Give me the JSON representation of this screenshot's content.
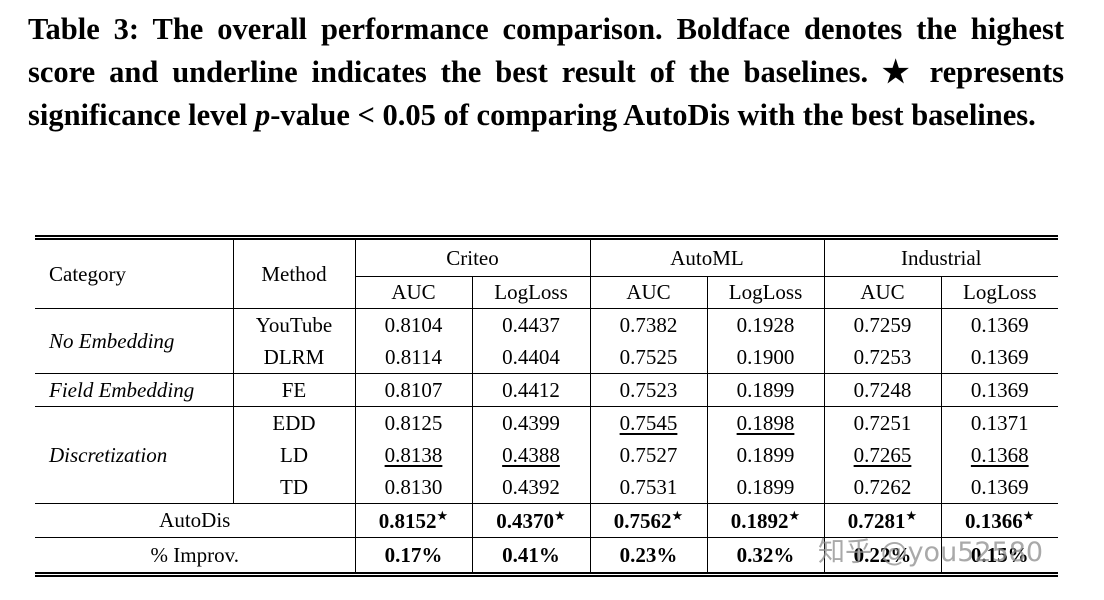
{
  "caption": {
    "label": "Table 3:",
    "text_before": "The overall performance comparison. Boldface denotes the highest score and underline indicates the best result of the baselines. ★ represents significance level ",
    "italic": "p",
    "text_after": "-value < 0.05 of comparing AutoDis with the best baselines."
  },
  "table": {
    "headers": {
      "category": "Category",
      "method": "Method",
      "datasets": [
        "Criteo",
        "AutoML",
        "Industrial"
      ],
      "metrics": [
        "AUC",
        "LogLoss"
      ]
    },
    "groups": [
      {
        "category": "No Embedding",
        "rows": [
          {
            "method": "YouTube",
            "values": [
              "0.8104",
              "0.4437",
              "0.7382",
              "0.1928",
              "0.7259",
              "0.1369"
            ],
            "underline": []
          },
          {
            "method": "DLRM",
            "values": [
              "0.8114",
              "0.4404",
              "0.7525",
              "0.1900",
              "0.7253",
              "0.1369"
            ],
            "underline": []
          }
        ]
      },
      {
        "category": "Field Embedding",
        "rows": [
          {
            "method": "FE",
            "values": [
              "0.8107",
              "0.4412",
              "0.7523",
              "0.1899",
              "0.7248",
              "0.1369"
            ],
            "underline": []
          }
        ]
      },
      {
        "category": "Discretization",
        "rows": [
          {
            "method": "EDD",
            "values": [
              "0.8125",
              "0.4399",
              "0.7545",
              "0.1898",
              "0.7251",
              "0.1371"
            ],
            "underline": [
              2,
              3
            ]
          },
          {
            "method": "LD",
            "values": [
              "0.8138",
              "0.4388",
              "0.7527",
              "0.1899",
              "0.7265",
              "0.1368"
            ],
            "underline": [
              0,
              1,
              4,
              5
            ]
          },
          {
            "method": "TD",
            "values": [
              "0.8130",
              "0.4392",
              "0.7531",
              "0.1899",
              "0.7262",
              "0.1369"
            ],
            "underline": []
          }
        ]
      }
    ],
    "autodis": {
      "method": "AutoDis",
      "values": [
        "0.8152",
        "0.4370",
        "0.7562",
        "0.1892",
        "0.7281",
        "0.1366"
      ],
      "mark": "★"
    },
    "improvement": {
      "label": "% Improv.",
      "values": [
        "0.17%",
        "0.41%",
        "0.23%",
        "0.32%",
        "0.22%",
        "0.15%"
      ]
    }
  },
  "watermark": "知乎 @you52580"
}
